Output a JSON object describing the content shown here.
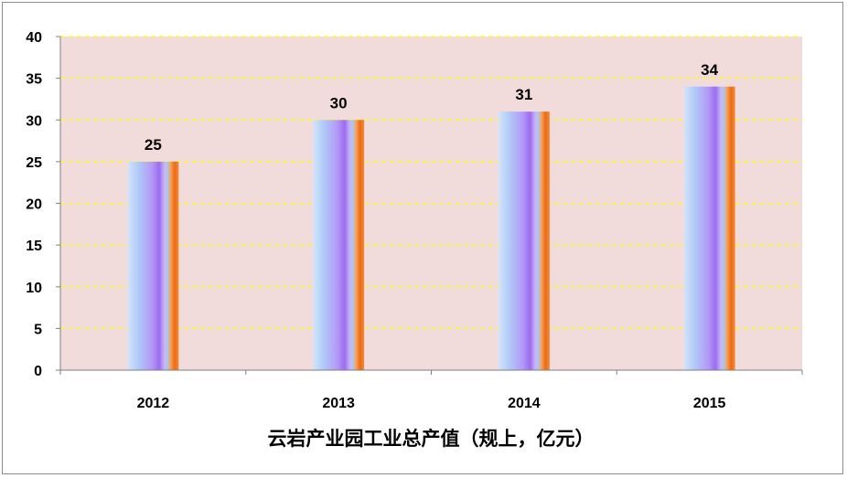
{
  "chart_data": {
    "type": "bar",
    "title": "",
    "xlabel": "云岩产业园工业总产值（规上，亿元）",
    "ylabel": "",
    "categories": [
      "2012",
      "2013",
      "2014",
      "2015"
    ],
    "values": [
      25,
      30,
      31,
      34
    ],
    "data_labels": [
      "25",
      "30",
      "31",
      "34"
    ],
    "ylim": [
      0,
      40
    ],
    "yticks": [
      "0",
      "5",
      "10",
      "15",
      "20",
      "25",
      "30",
      "35",
      "40"
    ],
    "grid": true,
    "legend": "none",
    "colors": {
      "plot_background": "#f2dcdb",
      "gridline": "#ffff00",
      "bar_light": "#b9d3f8",
      "bar_mid": "#a57cf5",
      "bar_accent": "#f07020"
    }
  }
}
